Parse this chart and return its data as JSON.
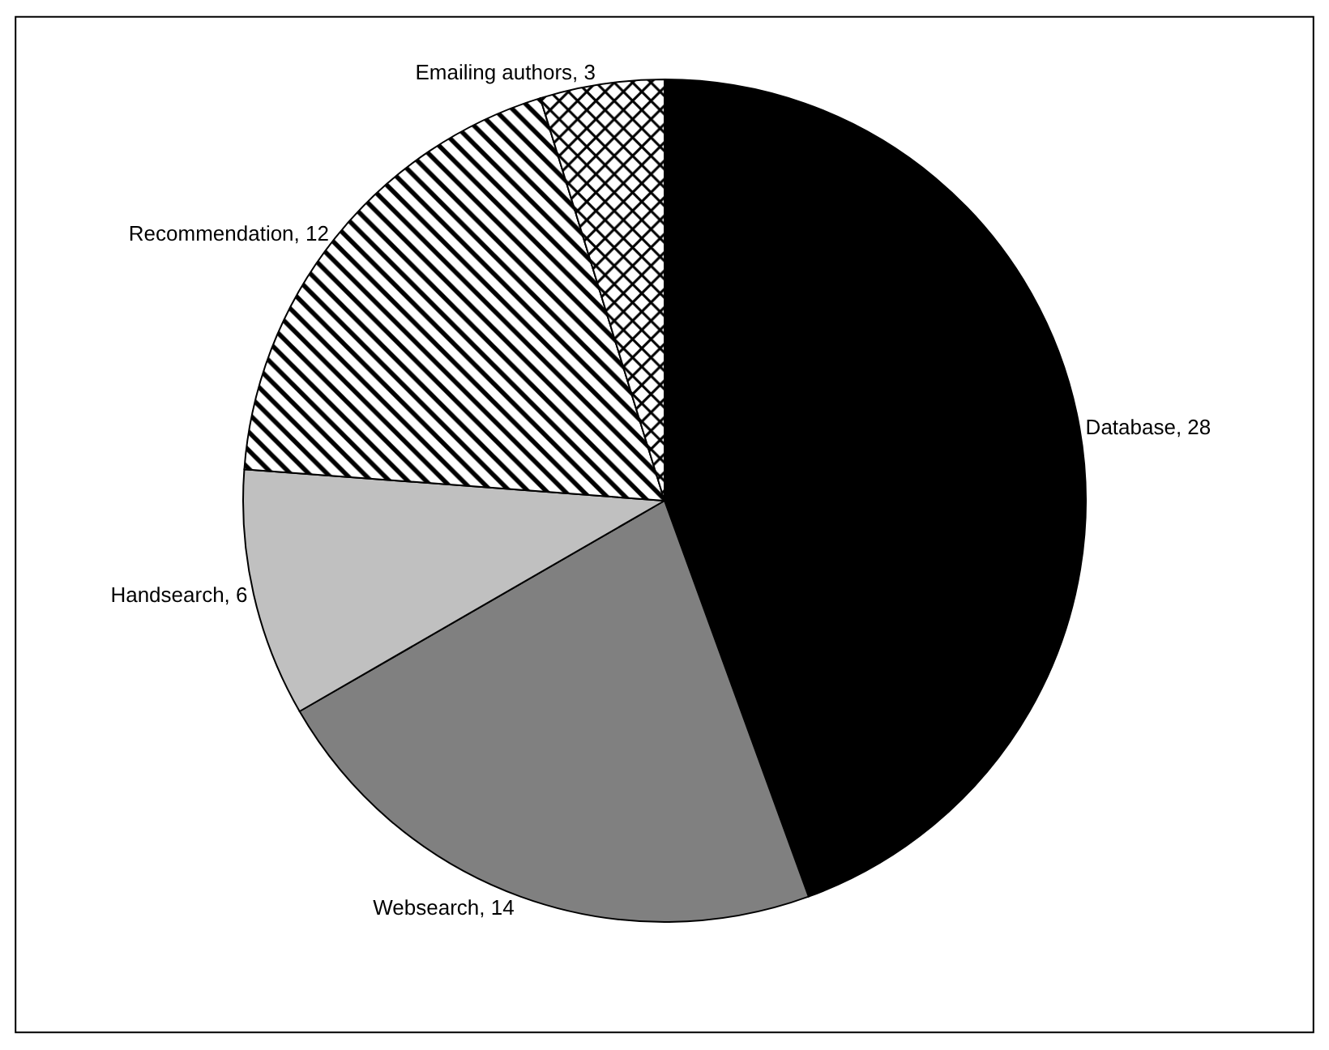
{
  "chart_data": {
    "type": "pie",
    "categories": [
      "Database",
      "Websearch",
      "Handsearch",
      "Recommendation",
      "Emailing authors"
    ],
    "values": [
      28,
      14,
      6,
      12,
      3
    ],
    "value_labels": [
      "28",
      "14",
      "6",
      "12",
      "3"
    ],
    "colors": [
      "#000000",
      "#808080",
      "#c0c0c0",
      "#000000",
      "#000000"
    ],
    "legend": false
  }
}
